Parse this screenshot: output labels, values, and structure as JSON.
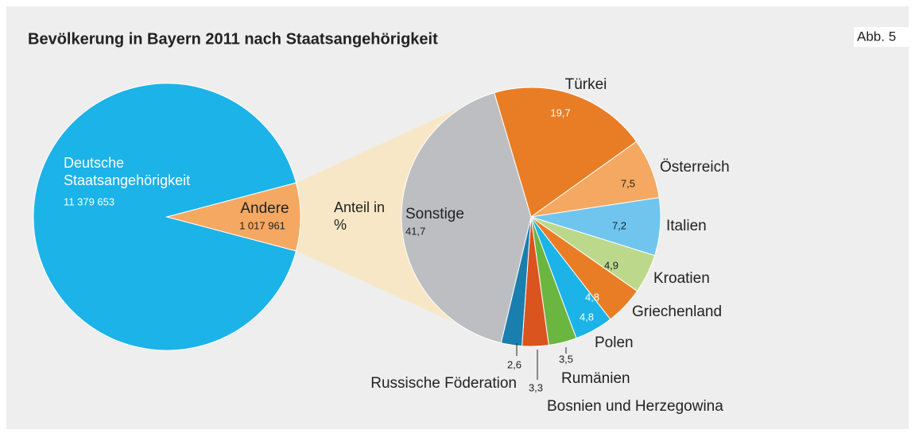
{
  "badge": "Abb. 5",
  "chart_data": [
    {
      "type": "pie",
      "title": "Bevölkerung in Bayern 2011 nach Staatsangehörigkeit",
      "categories": [
        "Deutsche Staatsangehörigkeit",
        "Andere"
      ],
      "values": [
        11379653,
        1017961
      ],
      "value_labels": [
        "11 379 653",
        "1 017 961"
      ],
      "colors": [
        "#1bb3e8",
        "#f5a862"
      ]
    },
    {
      "type": "pie",
      "annotation": "Anteil in %",
      "categories": [
        "Türkei",
        "Österreich",
        "Italien",
        "Kroatien",
        "Griechenland",
        "Polen",
        "Rumänien",
        "Bosnien und Herzegowina",
        "Russische Föderation",
        "Sonstige"
      ],
      "values": [
        19.7,
        7.5,
        7.2,
        4.9,
        4.8,
        4.8,
        3.5,
        3.3,
        2.6,
        41.7
      ],
      "value_labels": [
        "19,7",
        "7,5",
        "7,2",
        "4,9",
        "4,8",
        "4,8",
        "3,5",
        "3,3",
        "2,6",
        "41,7"
      ],
      "colors": [
        "#e97d25",
        "#f5a862",
        "#6fc5ee",
        "#bcd98b",
        "#e97d25",
        "#1bb3e8",
        "#6bb541",
        "#d9541f",
        "#1a7fae",
        "#bdbec1"
      ]
    }
  ]
}
